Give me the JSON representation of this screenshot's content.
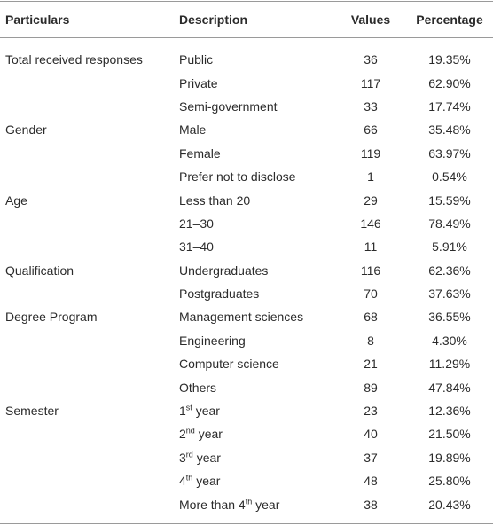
{
  "table": {
    "header": [
      "Particulars",
      "Description",
      "Values",
      "Percentage"
    ],
    "groups": [
      {
        "particular": "Total received responses",
        "rows": [
          [
            "Public",
            36,
            "19.35%"
          ],
          [
            "Private",
            117,
            "62.90%"
          ],
          [
            "Semi-government",
            33,
            "17.74%"
          ]
        ]
      },
      {
        "particular": "Gender",
        "rows": [
          [
            "Male",
            66,
            "35.48%"
          ],
          [
            "Female",
            119,
            "63.97%"
          ],
          [
            "Prefer not to disclose",
            1,
            "0.54%"
          ]
        ]
      },
      {
        "particular": "Age",
        "rows": [
          [
            "Less than 20",
            29,
            "15.59%"
          ],
          [
            "21–30",
            146,
            "78.49%"
          ],
          [
            "31–40",
            11,
            "5.91%"
          ]
        ]
      },
      {
        "particular": "Qualification",
        "rows": [
          [
            "Undergraduates",
            116,
            "62.36%"
          ],
          [
            "Postgraduates",
            70,
            "37.63%"
          ]
        ]
      },
      {
        "particular": "Degree Program",
        "rows": [
          [
            "Management sciences",
            68,
            "36.55%"
          ],
          [
            "Engineering",
            8,
            "4.30%"
          ],
          [
            "Computer science",
            21,
            "11.29%"
          ],
          [
            "Others",
            89,
            "47.84%"
          ]
        ]
      },
      {
        "particular": "Semester",
        "rows": [
          [
            {
              "pre": "1",
              "sup": "st",
              "post": " year"
            },
            23,
            "12.36%"
          ],
          [
            {
              "pre": "2",
              "sup": "nd",
              "post": " year"
            },
            40,
            "21.50%"
          ],
          [
            {
              "pre": "3",
              "sup": "rd",
              "post": " year"
            },
            37,
            "19.89%"
          ],
          [
            {
              "pre": "4",
              "sup": "th",
              "post": " year"
            },
            48,
            "25.80%"
          ],
          [
            {
              "pre": "More than 4",
              "sup": "th",
              "post": " year"
            },
            38,
            "20.43%"
          ]
        ]
      }
    ]
  }
}
